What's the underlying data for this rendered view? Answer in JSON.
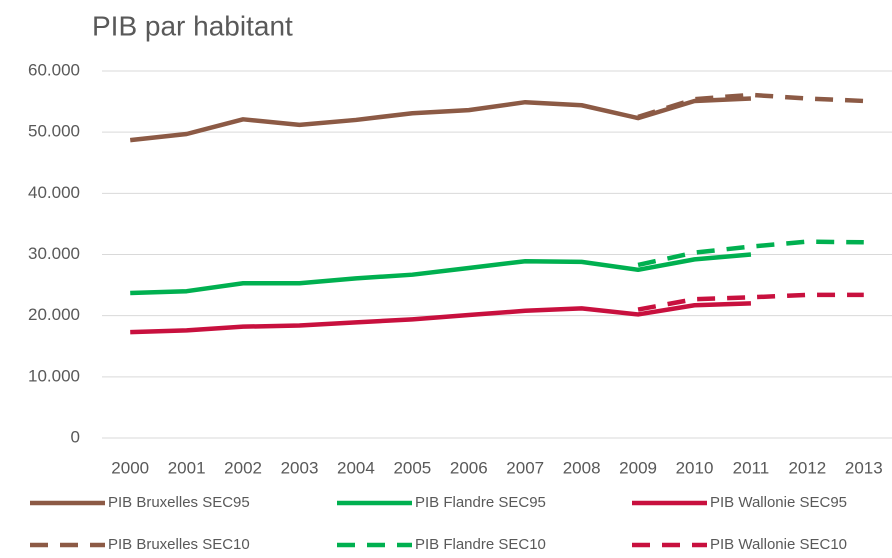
{
  "chart_data": {
    "type": "line",
    "title": "PIB par habitant",
    "categories": [
      "2000",
      "2001",
      "2002",
      "2003",
      "2004",
      "2005",
      "2006",
      "2007",
      "2008",
      "2009",
      "2010",
      "2011",
      "2012",
      "2013"
    ],
    "series": [
      {
        "name": "PIB Bruxelles SEC95",
        "color": "#8c5a45",
        "linestyle": "solid",
        "values": [
          48700,
          49700,
          52100,
          51200,
          52000,
          53100,
          53600,
          54900,
          54400,
          52300,
          55100,
          55500,
          null,
          null
        ]
      },
      {
        "name": "PIB Flandre SEC95",
        "color": "#00b050",
        "linestyle": "solid",
        "values": [
          23700,
          24000,
          25300,
          25300,
          26100,
          26700,
          27800,
          28900,
          28800,
          27500,
          29200,
          30000,
          null,
          null
        ]
      },
      {
        "name": "PIB Wallonie SEC95",
        "color": "#c8103e",
        "linestyle": "solid",
        "values": [
          17300,
          17600,
          18200,
          18400,
          18900,
          19400,
          20100,
          20800,
          21200,
          20200,
          21700,
          22000,
          null,
          null
        ]
      },
      {
        "name": "PIB Bruxelles SEC10",
        "color": "#8c5a45",
        "linestyle": "dashed",
        "values": [
          null,
          null,
          null,
          null,
          null,
          null,
          null,
          null,
          null,
          52500,
          55400,
          56100,
          55500,
          55100
        ]
      },
      {
        "name": "PIB Flandre SEC10",
        "color": "#00b050",
        "linestyle": "dashed",
        "values": [
          null,
          null,
          null,
          null,
          null,
          null,
          null,
          null,
          null,
          28300,
          30300,
          31300,
          32100,
          32000
        ]
      },
      {
        "name": "PIB Wallonie SEC10",
        "color": "#c8103e",
        "linestyle": "dashed",
        "values": [
          null,
          null,
          null,
          null,
          null,
          null,
          null,
          null,
          null,
          21000,
          22700,
          23000,
          23400,
          23400
        ]
      }
    ],
    "ylim": [
      0,
      60000
    ],
    "yticks": [
      0,
      {
        "value": 10000,
        "label": "10.000"
      },
      {
        "value": 20000,
        "label": "20.000"
      },
      {
        "value": 30000,
        "label": "30.000"
      },
      {
        "value": 40000,
        "label": "40.000"
      },
      {
        "value": 50000,
        "label": "50.000"
      },
      {
        "value": 60000,
        "label": "60.000"
      }
    ],
    "grid": true
  }
}
